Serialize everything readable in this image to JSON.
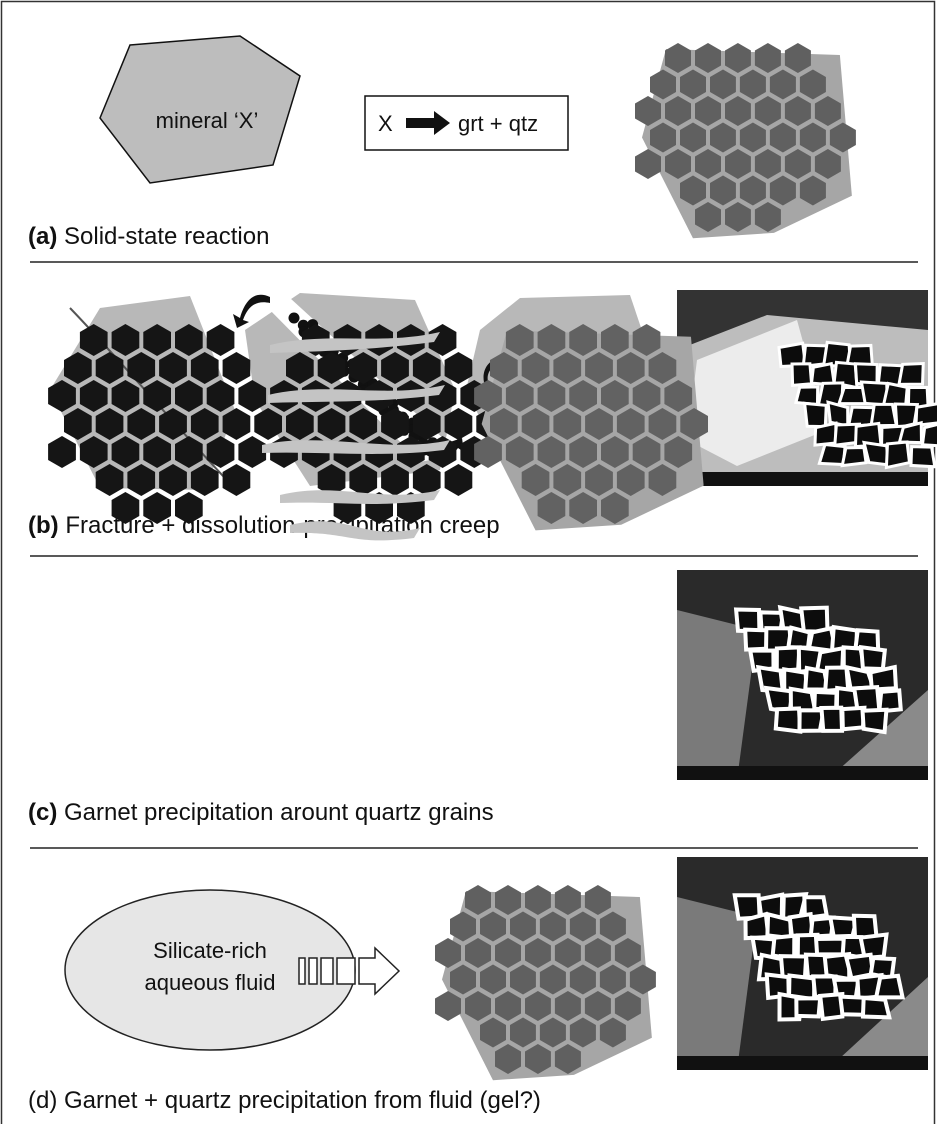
{
  "panels": [
    {
      "label": "(a)",
      "caption": "Solid-state reaction",
      "mineral": "mineral ‘X’",
      "reactant": "X",
      "products": "grt + qtz"
    },
    {
      "label": "(b)",
      "caption": "Fracture + dissolution-precipitation creep"
    },
    {
      "label": "(c)",
      "caption": "Garnet precipitation arount quartz grains"
    },
    {
      "label": "(d)",
      "caption": "Garnet + quartz precipitation from fluid (gel?)",
      "fluid": [
        "Silicate-rich",
        "aqueous fluid"
      ]
    }
  ]
}
